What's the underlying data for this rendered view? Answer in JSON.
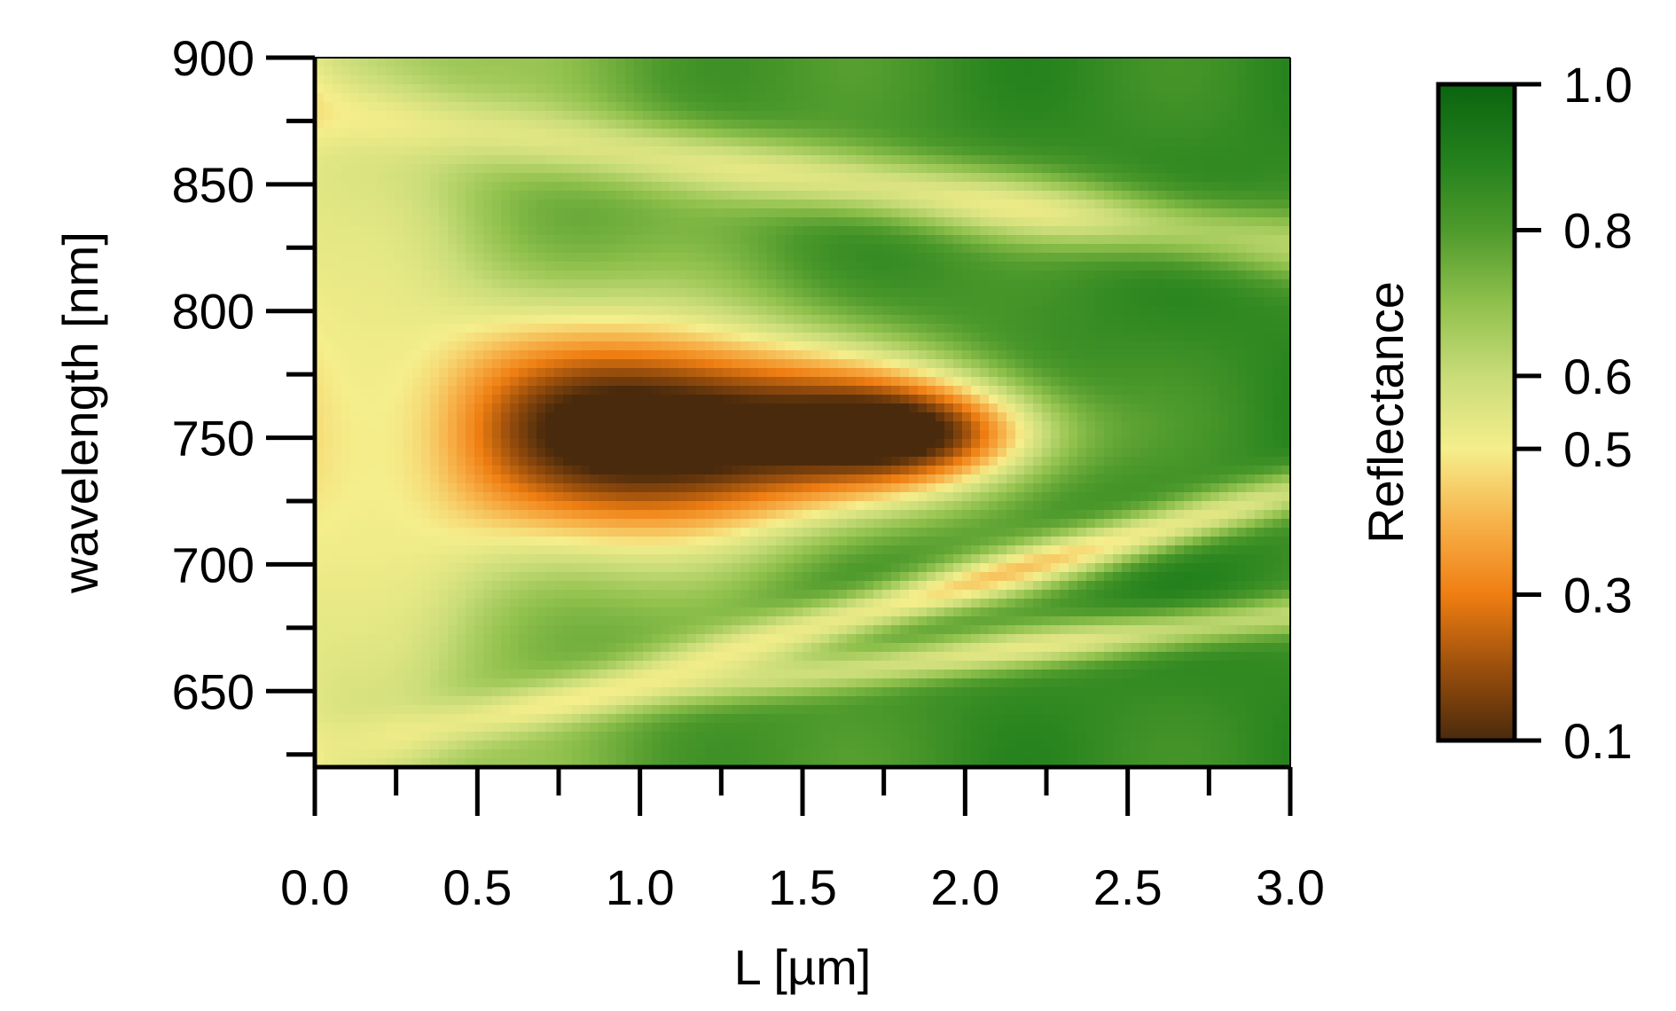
{
  "chart_data": {
    "type": "heatmap",
    "title": "",
    "xlabel": "L [µm]",
    "ylabel": "wavelength [nm]",
    "xlim": [
      0.0,
      3.0
    ],
    "ylim": [
      620,
      900
    ],
    "x_ticks": [
      "0.0",
      "0.5",
      "1.0",
      "1.5",
      "2.0",
      "2.5",
      "3.0"
    ],
    "x_tick_values": [
      0.0,
      0.5,
      1.0,
      1.5,
      2.0,
      2.5,
      3.0
    ],
    "y_ticks": [
      "650",
      "700",
      "750",
      "800",
      "850",
      "900"
    ],
    "y_tick_values": [
      650,
      700,
      750,
      800,
      850,
      900
    ],
    "colorbar": {
      "label": "Reflectance",
      "range": [
        0.1,
        1.0
      ],
      "ticks": [
        "0.1",
        "0.3",
        "0.5",
        "0.6",
        "0.8",
        "1.0"
      ],
      "tick_values": [
        0.1,
        0.3,
        0.5,
        0.6,
        0.8,
        1.0
      ],
      "colors": {
        "0.1": "#4a2a0c",
        "0.2": "#9b4f0c",
        "0.3": "#ef7e12",
        "0.4": "#f7b24a",
        "0.5": "#f5ee8c",
        "0.6": "#c8dc78",
        "0.7": "#8fc04c",
        "0.8": "#4e9a2c",
        "0.9": "#22801c",
        "1.0": "#0b640f"
      }
    },
    "features": [
      {
        "x_range": [
          0.6,
          2.1
        ],
        "y_center": 752,
        "description_value_min": 0.15
      },
      {
        "x_range": [
          0.0,
          0.4
        ],
        "y_range": [
          620,
          800
        ],
        "value_approx": 0.55
      }
    ]
  }
}
